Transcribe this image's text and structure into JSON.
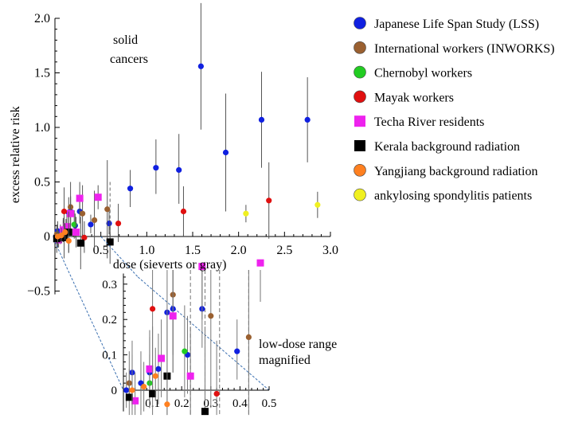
{
  "chart_data": {
    "type": "scatter",
    "title": "",
    "xlabel": "dose (sieverts or gray)",
    "ylabel": "excess relative risk",
    "xlim": [
      0,
      3.0
    ],
    "ylim": [
      -0.5,
      2.0
    ],
    "xticks": [
      "0.5",
      "1.0",
      "1.5",
      "2.0",
      "2.5",
      "3.0"
    ],
    "yticks": [
      "−0.5",
      "0",
      "0.5",
      "1.0",
      "1.5",
      "2.0"
    ],
    "grid": false,
    "legend_position": "top-right",
    "annotations": [
      "solid",
      "cancers"
    ],
    "series": [
      {
        "name": "Japanese Life Span Study (LSS)",
        "color": "#1020e0",
        "marker": "circle",
        "points": [
          {
            "x": 0.01,
            "y": 0.0,
            "lo": -0.05,
            "hi": 0.05
          },
          {
            "x": 0.03,
            "y": 0.05,
            "lo": -0.05,
            "hi": 0.14
          },
          {
            "x": 0.06,
            "y": 0.02,
            "lo": -0.07,
            "hi": 0.11
          },
          {
            "x": 0.09,
            "y": 0.05,
            "lo": -0.05,
            "hi": 0.15
          },
          {
            "x": 0.12,
            "y": 0.06,
            "lo": -0.04,
            "hi": 0.16
          },
          {
            "x": 0.15,
            "y": 0.22,
            "lo": 0.08,
            "hi": 0.36
          },
          {
            "x": 0.17,
            "y": 0.23,
            "lo": 0.1,
            "hi": 0.36
          },
          {
            "x": 0.22,
            "y": 0.1,
            "lo": -0.01,
            "hi": 0.21
          },
          {
            "x": 0.27,
            "y": 0.23,
            "lo": 0.12,
            "hi": 0.34
          },
          {
            "x": 0.39,
            "y": 0.11,
            "lo": 0.03,
            "hi": 0.2
          },
          {
            "x": 0.59,
            "y": 0.12,
            "lo": 0.02,
            "hi": 0.23
          },
          {
            "x": 0.82,
            "y": 0.44,
            "lo": 0.27,
            "hi": 0.61
          },
          {
            "x": 1.1,
            "y": 0.63,
            "lo": 0.39,
            "hi": 0.89
          },
          {
            "x": 1.35,
            "y": 0.61,
            "lo": 0.3,
            "hi": 0.94
          },
          {
            "x": 1.59,
            "y": 1.56,
            "lo": 0.98,
            "hi": 2.14
          },
          {
            "x": 1.86,
            "y": 0.77,
            "lo": 0.23,
            "hi": 1.31
          },
          {
            "x": 2.25,
            "y": 1.07,
            "lo": 0.63,
            "hi": 1.51
          },
          {
            "x": 2.75,
            "y": 1.07,
            "lo": 0.68,
            "hi": 1.46
          }
        ]
      },
      {
        "name": "International workers (INWORKS)",
        "color": "#9a6030",
        "marker": "circle",
        "points": [
          {
            "x": 0.02,
            "y": 0.02,
            "lo": -0.02,
            "hi": 0.06
          },
          {
            "x": 0.17,
            "y": 0.27,
            "lo": 0.05,
            "hi": 0.5
          },
          {
            "x": 0.3,
            "y": 0.21,
            "lo": -0.05,
            "hi": 0.47
          },
          {
            "x": 0.43,
            "y": 0.15,
            "lo": -0.12,
            "hi": 0.42
          },
          {
            "x": 0.57,
            "y": 0.25,
            "lo": -0.2,
            "hi": 0.7
          }
        ]
      },
      {
        "name": "Chernobyl workers",
        "color": "#22cc22",
        "marker": "circle",
        "points": [
          {
            "x": 0.09,
            "y": 0.02,
            "lo": -0.05,
            "hi": 0.1
          },
          {
            "x": 0.21,
            "y": 0.11,
            "lo": -0.02,
            "hi": 0.24
          }
        ]
      },
      {
        "name": "Mayak workers",
        "color": "#e01010",
        "marker": "circle",
        "points": [
          {
            "x": 0.1,
            "y": 0.23,
            "lo": 0.0,
            "hi": 0.45
          },
          {
            "x": 0.32,
            "y": -0.01,
            "lo": -0.15,
            "hi": 0.14
          },
          {
            "x": 0.69,
            "y": 0.12,
            "lo": -0.05,
            "hi": 0.3
          },
          {
            "x": 1.4,
            "y": 0.23,
            "lo": 0.0,
            "hi": 0.46
          },
          {
            "x": 2.33,
            "y": 0.33,
            "lo": -0.02,
            "hi": 0.68
          }
        ]
      },
      {
        "name": "Techa River residents",
        "color": "#ee22ee",
        "marker": "square",
        "points": [
          {
            "x": 0.04,
            "y": -0.03,
            "lo": -0.1,
            "hi": 0.05
          },
          {
            "x": 0.09,
            "y": 0.06,
            "lo": -0.05,
            "hi": 0.17
          },
          {
            "x": 0.13,
            "y": 0.09,
            "lo": -0.02,
            "hi": 0.2
          },
          {
            "x": 0.17,
            "y": 0.21,
            "lo": 0.05,
            "hi": 0.37
          },
          {
            "x": 0.23,
            "y": 0.04,
            "lo": -0.1,
            "hi": 0.18
          },
          {
            "x": 0.27,
            "y": 0.35,
            "lo": 0.2,
            "hi": 0.5
          },
          {
            "x": 0.47,
            "y": 0.36,
            "lo": 0.25,
            "hi": 0.47
          }
        ]
      },
      {
        "name": "Kerala background radiation",
        "color": "#000000",
        "marker": "square",
        "points": [
          {
            "x": 0.02,
            "y": -0.02,
            "lo": -0.15,
            "hi": 0.11
          },
          {
            "x": 0.1,
            "y": -0.01,
            "lo": -0.2,
            "hi": 0.18
          },
          {
            "x": 0.15,
            "y": 0.04,
            "lo": -0.15,
            "hi": 0.23
          },
          {
            "x": 0.28,
            "y": -0.06,
            "lo": -0.3,
            "hi": 0.18
          },
          {
            "x": 0.6,
            "y": -0.05,
            "lo": -0.25,
            "hi": 0.15
          }
        ]
      },
      {
        "name": "Yangjiang background radiation",
        "color": "#ff8020",
        "marker": "circle",
        "points": [
          {
            "x": 0.03,
            "y": 0.0,
            "lo": -0.1,
            "hi": 0.1
          },
          {
            "x": 0.07,
            "y": 0.01,
            "lo": -0.06,
            "hi": 0.08
          },
          {
            "x": 0.11,
            "y": 0.04,
            "lo": -0.03,
            "hi": 0.12
          },
          {
            "x": 0.15,
            "y": -0.04,
            "lo": -0.15,
            "hi": 0.08
          }
        ]
      },
      {
        "name": "ankylosing spondylitis patients",
        "color": "#f0f020",
        "marker": "circle",
        "points": [
          {
            "x": 2.08,
            "y": 0.21,
            "lo": 0.13,
            "hi": 0.29
          },
          {
            "x": 2.86,
            "y": 0.29,
            "lo": 0.17,
            "hi": 0.41
          }
        ]
      }
    ],
    "inset": {
      "xlim": [
        0,
        0.5
      ],
      "ylim": [
        0,
        0.3
      ],
      "xticks": [
        "0.1",
        "0.2",
        "0.3",
        "0.4",
        "0.5"
      ],
      "yticks": [
        "0",
        "0.1",
        "0.2",
        "0.3"
      ],
      "annotations": [
        "low-dose range",
        "magnified"
      ]
    }
  }
}
